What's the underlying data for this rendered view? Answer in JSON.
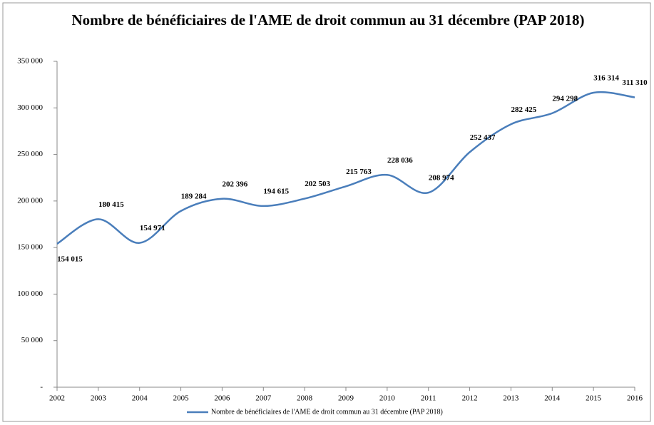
{
  "chart_data": {
    "type": "line",
    "title": "Nombre de bénéficiaires de l'AME de droit commun au 31 décembre (PAP 2018)",
    "categories": [
      "2002",
      "2003",
      "2004",
      "2005",
      "2006",
      "2007",
      "2008",
      "2009",
      "2010",
      "2011",
      "2012",
      "2013",
      "2014",
      "2015",
      "2016"
    ],
    "series": [
      {
        "name": "Nombre de bénéficiaires de l'AME de droit commun au 31 décembre (PAP 2018)",
        "color": "#4a7ebb",
        "values": [
          154015,
          180415,
          154971,
          189284,
          202396,
          194615,
          202503,
          215763,
          228036,
          208974,
          252437,
          282425,
          294298,
          316314,
          311310
        ],
        "value_labels": [
          "154 015",
          "180 415",
          "154 971",
          "189 284",
          "202 396",
          "194 615",
          "202 503",
          "215 763",
          "228 036",
          "208 974",
          "252 437",
          "282 425",
          "294 298",
          "316 314",
          "311 310"
        ]
      }
    ],
    "ylim": [
      0,
      350000
    ],
    "yticks": [
      {
        "value": 0,
        "label": "-"
      },
      {
        "value": 50000,
        "label": "50 000"
      },
      {
        "value": 100000,
        "label": "100 000"
      },
      {
        "value": 150000,
        "label": "150 000"
      },
      {
        "value": 200000,
        "label": "200 000"
      },
      {
        "value": 250000,
        "label": "250 000"
      },
      {
        "value": 300000,
        "label": "300 000"
      },
      {
        "value": 350000,
        "label": "350 000"
      }
    ],
    "grid": false,
    "smooth": true,
    "legend": "bottom"
  }
}
